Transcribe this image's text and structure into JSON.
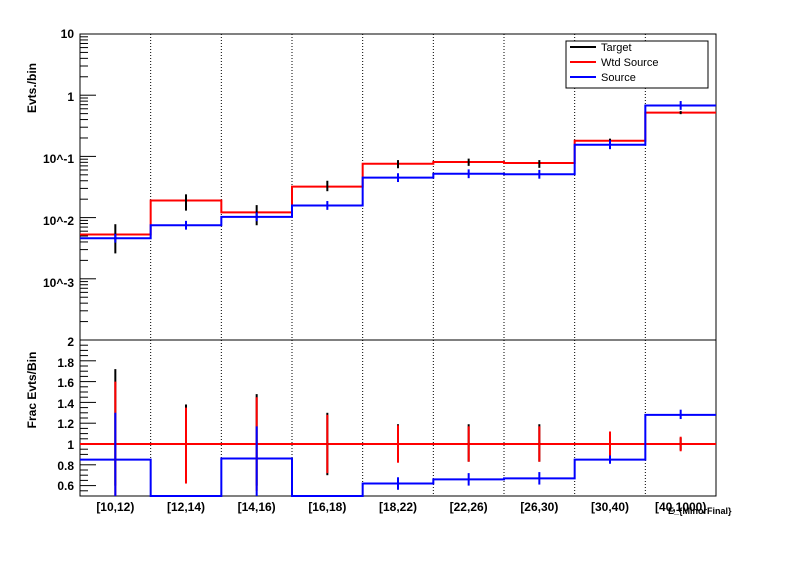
{
  "chart_data": [
    {
      "type": "step",
      "ylabel": "Evts./bin",
      "log_y": true,
      "ylim": [
        0.0001,
        10
      ],
      "y_tick_labels": [
        "10",
        "1",
        "10^-1",
        "10^-2",
        "10^-3"
      ],
      "categories": [
        "[10,12)",
        "[12,14)",
        "[14,16)",
        "[16,18)",
        "[18,22)",
        "[22,26)",
        "[26,30)",
        "[30,40)",
        "[40,1000)"
      ],
      "legend": {
        "position": "top-right",
        "entries": [
          "Target",
          "Wtd Source",
          "Source"
        ]
      },
      "series": [
        {
          "name": "Target",
          "color": "#000000",
          "style": "points",
          "values": [
            0.0045,
            0.018,
            0.011,
            0.033,
            0.075,
            0.08,
            0.075,
            0.18,
            0.52
          ],
          "errors_low": [
            0.0026,
            0.013,
            0.0075,
            0.027,
            0.064,
            0.07,
            0.065,
            0.165,
            0.49
          ],
          "errors_high": [
            0.0078,
            0.024,
            0.016,
            0.04,
            0.087,
            0.092,
            0.087,
            0.195,
            0.55
          ]
        },
        {
          "name": "Wtd Source",
          "color": "#ff0000",
          "style": "step",
          "values": [
            0.0053,
            0.019,
            0.0122,
            0.032,
            0.076,
            0.081,
            0.078,
            0.18,
            0.52
          ]
        },
        {
          "name": "Source",
          "color": "#0000ff",
          "style": "step",
          "values": [
            0.0046,
            0.0075,
            0.0103,
            0.0158,
            0.045,
            0.052,
            0.051,
            0.155,
            0.68
          ]
        }
      ]
    },
    {
      "type": "step",
      "ylabel": "Frac Evts/Bin",
      "ylim": [
        0.5,
        2
      ],
      "y_tick_labels": [
        "2",
        "1.8",
        "1.6",
        "1.4",
        "1.2",
        "1",
        "0.8",
        "0.6"
      ],
      "xlabel": "E_{MinorFinal}",
      "categories": [
        "[10,12)",
        "[12,14)",
        "[14,16)",
        "[16,18)",
        "[18,22)",
        "[22,26)",
        "[26,30)",
        "[30,40)",
        "[40,1000)"
      ],
      "series": [
        {
          "name": "Wtd Source",
          "color": "#ff0000",
          "style": "step",
          "values": [
            1,
            1,
            1,
            1,
            1,
            1,
            1,
            1,
            1
          ],
          "errors_low": [
            0.4,
            0.62,
            0.55,
            0.72,
            0.82,
            0.83,
            0.83,
            0.88,
            0.93
          ],
          "errors_high": [
            1.6,
            1.35,
            1.45,
            1.28,
            1.18,
            1.17,
            1.17,
            1.12,
            1.07
          ]
        },
        {
          "name": "Target",
          "color": "#000000",
          "style": "errorbars",
          "values": [
            1,
            1,
            1,
            1,
            1,
            1,
            1,
            1,
            1
          ],
          "errors_low": [
            0.6,
            0.62,
            0.6,
            0.7,
            0.83,
            0.83,
            0.83,
            0.88,
            0.94
          ],
          "errors_high": [
            1.72,
            1.38,
            1.48,
            1.3,
            1.19,
            1.19,
            1.19,
            1.12,
            1.06
          ]
        },
        {
          "name": "Source",
          "color": "#0000ff",
          "style": "step",
          "values": [
            0.85,
            0.5,
            0.86,
            0.5,
            0.62,
            0.66,
            0.67,
            0.85,
            1.28
          ],
          "errors_low": [
            0.5,
            0.5,
            0.5,
            0.5,
            0.56,
            0.6,
            0.61,
            0.81,
            1.24
          ],
          "errors_high": [
            1.3,
            0.5,
            1.17,
            0.5,
            0.68,
            0.72,
            0.73,
            0.89,
            1.33
          ]
        }
      ]
    }
  ],
  "colors": {
    "target": "#000000",
    "wtd_source": "#ff0000",
    "source": "#0000ff"
  }
}
